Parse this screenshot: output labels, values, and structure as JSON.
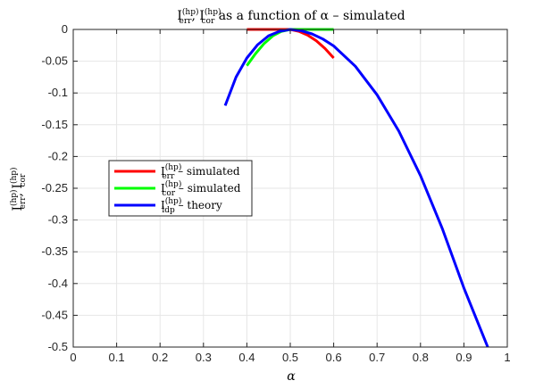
{
  "chart_data": {
    "type": "line",
    "title": {
      "main": "I",
      "sup1": "(hp)",
      "sub1": "err",
      "sep": ", I",
      "sup2": "(hp)",
      "sub2": "cor",
      "rest": " as a function of α – simulated"
    },
    "xlabel": "α",
    "ylabel": {
      "main": "I",
      "sup1": "(hp)",
      "sub1": "err",
      "sep": ", I",
      "sup2": "(hp)",
      "sub2": "cor"
    },
    "xlim": [
      0,
      1
    ],
    "ylim": [
      -0.5,
      0
    ],
    "x_ticks": [
      "0",
      "0.1",
      "0.2",
      "0.3",
      "0.4",
      "0.5",
      "0.6",
      "0.7",
      "0.8",
      "0.9",
      "1"
    ],
    "y_ticks": [
      "0",
      "-0.05",
      "-0.1",
      "-0.15",
      "-0.2",
      "-0.25",
      "-0.3",
      "-0.35",
      "-0.4",
      "-0.45",
      "-0.5"
    ],
    "grid": true,
    "legend_position": "middle-left",
    "series": [
      {
        "name": "I_err^(hp) – simulated",
        "legend": {
          "main": "I",
          "sup": "(hp)",
          "sub": "err",
          "rest": " – simulated"
        },
        "color": "#ff0000",
        "points": [
          [
            0.4,
            0.0
          ],
          [
            0.42,
            0.0
          ],
          [
            0.44,
            0.0
          ],
          [
            0.46,
            0.0
          ],
          [
            0.48,
            0.0
          ],
          [
            0.5,
            0.0
          ],
          [
            0.52,
            -0.003
          ],
          [
            0.54,
            -0.009
          ],
          [
            0.56,
            -0.018
          ],
          [
            0.58,
            -0.03
          ],
          [
            0.6,
            -0.045
          ]
        ]
      },
      {
        "name": "I_cor^(hp) – simulated",
        "legend": {
          "main": "I",
          "sup": "(hp)",
          "sub": "cor",
          "rest": " – simulated"
        },
        "color": "#00ff00",
        "points": [
          [
            0.4,
            -0.057
          ],
          [
            0.42,
            -0.038
          ],
          [
            0.44,
            -0.022
          ],
          [
            0.46,
            -0.01
          ],
          [
            0.48,
            -0.003
          ],
          [
            0.5,
            0.0
          ],
          [
            0.52,
            0.0
          ],
          [
            0.54,
            0.0
          ],
          [
            0.56,
            0.0
          ],
          [
            0.58,
            0.0
          ],
          [
            0.6,
            0.0
          ]
        ]
      },
      {
        "name": "I_ldp^(hp) – theory",
        "legend": {
          "main": "I",
          "sup": "(hp)",
          "sub": "ldp",
          "rest": " – theory"
        },
        "color": "#0000ff",
        "points": [
          [
            0.35,
            -0.12
          ],
          [
            0.375,
            -0.075
          ],
          [
            0.4,
            -0.045
          ],
          [
            0.425,
            -0.024
          ],
          [
            0.45,
            -0.01
          ],
          [
            0.475,
            -0.003
          ],
          [
            0.5,
            0.0
          ],
          [
            0.525,
            -0.002
          ],
          [
            0.55,
            -0.007
          ],
          [
            0.575,
            -0.015
          ],
          [
            0.6,
            -0.026
          ],
          [
            0.65,
            -0.058
          ],
          [
            0.7,
            -0.103
          ],
          [
            0.75,
            -0.16
          ],
          [
            0.8,
            -0.23
          ],
          [
            0.85,
            -0.313
          ],
          [
            0.9,
            -0.407
          ],
          [
            0.955,
            -0.5
          ]
        ]
      }
    ]
  }
}
